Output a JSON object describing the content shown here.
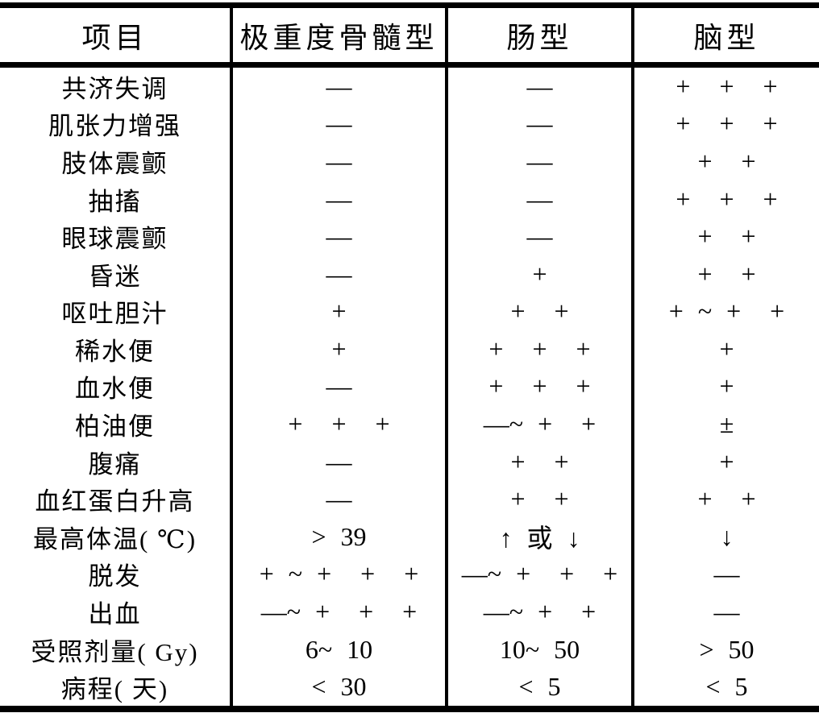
{
  "colors": {
    "background": "#ffffff",
    "border": "#000000",
    "text": "#000000"
  },
  "table": {
    "columns": [
      "项目",
      "极重度骨髓型",
      "肠型",
      "脑型"
    ],
    "rows": [
      {
        "label": "共济失调",
        "cols": [
          "—",
          "—",
          "+  +  +"
        ]
      },
      {
        "label": "肌张力增强",
        "cols": [
          "—",
          "—",
          "+  +  +"
        ]
      },
      {
        "label": "肢体震颤",
        "cols": [
          "—",
          "—",
          "+  +"
        ]
      },
      {
        "label": "抽搐",
        "cols": [
          "—",
          "—",
          "+  +  +"
        ]
      },
      {
        "label": "眼球震颤",
        "cols": [
          "—",
          "—",
          "+  +"
        ]
      },
      {
        "label": "昏迷",
        "cols": [
          "—",
          "+",
          "+  +"
        ]
      },
      {
        "label": "呕吐胆汁",
        "cols": [
          "+",
          "+  +",
          "+ ~ +  +"
        ]
      },
      {
        "label": "稀水便",
        "cols": [
          "+",
          "+  +  +",
          "+"
        ]
      },
      {
        "label": "血水便",
        "cols": [
          "—",
          "+  +  +",
          "+"
        ]
      },
      {
        "label": "柏油便",
        "cols": [
          "+  +  +",
          "—~ +  +",
          "±"
        ]
      },
      {
        "label": "腹痛",
        "cols": [
          "—",
          "+  +",
          "+"
        ]
      },
      {
        "label": "血红蛋白升高",
        "cols": [
          "—",
          "+  +",
          "+  +"
        ]
      },
      {
        "label": "最高体温( ℃)",
        "cols": [
          "> 39",
          "↑ 或 ↓",
          "↓"
        ]
      },
      {
        "label": "脱发",
        "cols": [
          "+ ~ +  +  +",
          "—~ +  +  +",
          "—"
        ]
      },
      {
        "label": "出血",
        "cols": [
          "—~ +  +  +",
          "—~ +  +",
          "—"
        ]
      },
      {
        "label": "受照剂量( Gy)",
        "cols": [
          "6~ 10",
          "10~ 50",
          "> 50"
        ]
      },
      {
        "label": "病程( 天)",
        "cols": [
          "< 30",
          "< 5",
          "< 5"
        ]
      }
    ]
  }
}
